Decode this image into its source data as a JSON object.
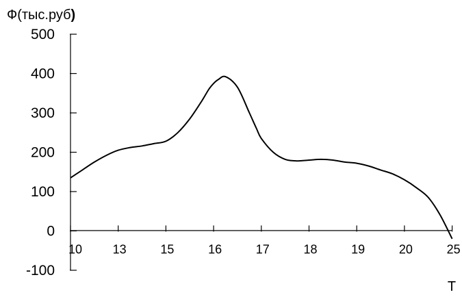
{
  "chart_data": {
    "type": "line",
    "ylabel_prefix": "Ф(тыс.руб",
    "ylabel_suffix": ")",
    "xlabel": "Т",
    "ylim": [
      -100,
      500
    ],
    "yticks": [
      "500",
      "400",
      "300",
      "200",
      "100",
      "0",
      "-100"
    ],
    "categories": [
      "10",
      "13",
      "15",
      "16",
      "17",
      "18",
      "19",
      "20",
      "25"
    ],
    "grid": false,
    "legend": "none",
    "series": [
      {
        "x": [
          0,
          0.25,
          0.5,
          0.75,
          1,
          1.25,
          1.5,
          1.75,
          2,
          2.25,
          2.5,
          2.75,
          2.9,
          3,
          3.1,
          3.25,
          3.5,
          3.75,
          3.9,
          4,
          4.25,
          4.5,
          4.75,
          5,
          5.25,
          5.5,
          5.75,
          6,
          6.25,
          6.5,
          6.75,
          7,
          7.25,
          7.5,
          7.75,
          8
        ],
        "values": [
          135,
          155,
          175,
          192,
          205,
          212,
          216,
          222,
          228,
          250,
          285,
          330,
          360,
          375,
          385,
          392,
          365,
          300,
          260,
          235,
          200,
          182,
          178,
          180,
          182,
          180,
          175,
          172,
          165,
          155,
          145,
          130,
          110,
          85,
          40,
          -20
        ]
      }
    ]
  }
}
